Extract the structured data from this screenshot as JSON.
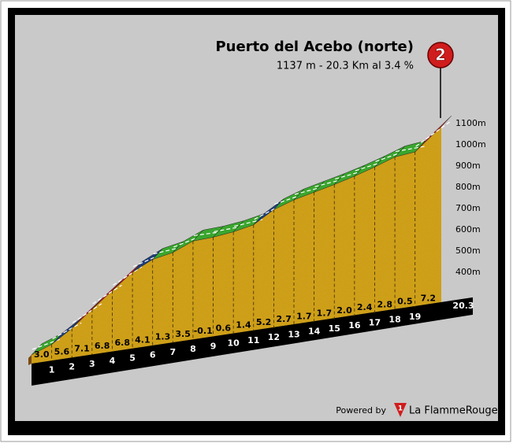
{
  "title": "Puerto del Acebo (norte)",
  "subtitle": "1137 m - 20.3 Km al 3.4 %",
  "category": "2",
  "chart_data": {
    "type": "profile",
    "elevation": 1137,
    "length": 20.3,
    "x": [
      1,
      2,
      3,
      4,
      5,
      6,
      7,
      8,
      9,
      10,
      11,
      12,
      13,
      14,
      15,
      16,
      17,
      18,
      19,
      20.3
    ],
    "values": [
      3.0,
      5.6,
      7.1,
      6.8,
      6.8,
      4.1,
      1.3,
      3.5,
      -0.1,
      0.6,
      1.4,
      5.2,
      2.7,
      1.7,
      1.7,
      2.0,
      2.4,
      2.8,
      0.5,
      7.2
    ],
    "value_labels": [
      "3.0",
      "5.6",
      "7.1",
      "6.8",
      "6.8",
      "4.1",
      "1.3",
      "3.5",
      "-0.1",
      "0.6",
      "1.4",
      "5.2",
      "2.7",
      "1.7",
      "1.7",
      "2.0",
      "2.4",
      "2.8",
      "0.5",
      "7.2"
    ],
    "colors": [
      "#3aa62e",
      "#1d3f7a",
      "#c8141e",
      "#c8141e",
      "#c8141e",
      "#1d3f7a",
      "#3aa62e",
      "#3aa62e",
      "#3aa62e",
      "#3aa62e",
      "#3aa62e",
      "#1d3f7a",
      "#3aa62e",
      "#3aa62e",
      "#3aa62e",
      "#3aa62e",
      "#3aa62e",
      "#3aa62e",
      "#3aa62e",
      "#c8141e"
    ],
    "ylim": [
      400,
      1100
    ],
    "yticks": [
      {
        "value": 400,
        "label": "400m"
      },
      {
        "value": 500,
        "label": "500m"
      },
      {
        "value": 600,
        "label": "600m"
      },
      {
        "value": 700,
        "label": "700m"
      },
      {
        "value": 800,
        "label": "800m"
      },
      {
        "value": 900,
        "label": "900m"
      },
      {
        "value": 1000,
        "label": "1000m"
      },
      {
        "value": 1100,
        "label": "1100m"
      }
    ]
  },
  "footer": {
    "powered": "Powered by",
    "logo": "1",
    "brand": "La FlammeRouge"
  }
}
